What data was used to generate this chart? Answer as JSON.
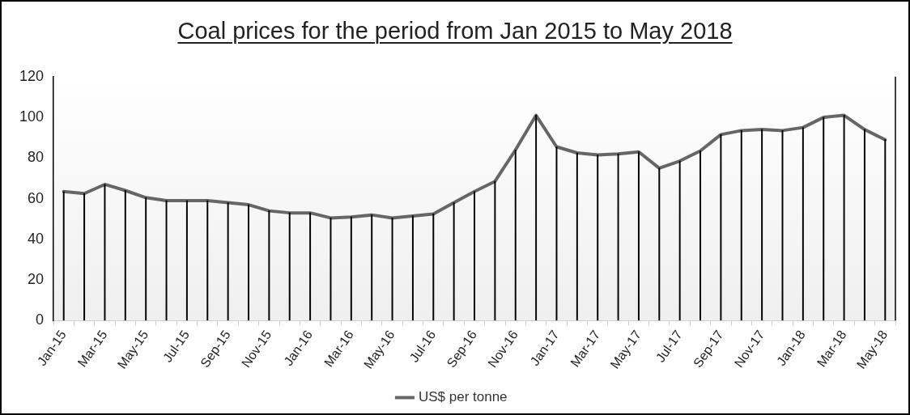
{
  "chart_data": {
    "type": "line",
    "title": "Coal prices for the period from Jan 2015 to May 2018",
    "categories": [
      "Jan-15",
      null,
      "Mar-15",
      null,
      "May-15",
      null,
      "Jul-15",
      null,
      "Sep-15",
      null,
      "Nov-15",
      null,
      "Jan-16",
      null,
      "Mar-16",
      null,
      "May-16",
      null,
      "Jul-16",
      null,
      "Sep-16",
      null,
      "Nov-16",
      null,
      "Jan-17",
      null,
      "Mar-17",
      null,
      "May-17",
      null,
      "Jul-17",
      null,
      "Sep-17",
      null,
      "Nov-17",
      null,
      "Jan-18",
      null,
      "Mar-18",
      null,
      "May-18"
    ],
    "series": [
      {
        "name": "US$ per tonne",
        "color": "#666666",
        "values": [
          63.5,
          62.5,
          67,
          64,
          60.5,
          59,
          59,
          59,
          58,
          57,
          54,
          53,
          53,
          50.5,
          51,
          52,
          50.5,
          51.5,
          52.5,
          58,
          63.5,
          68.5,
          84,
          101,
          85.5,
          82.5,
          81.5,
          82,
          83,
          75,
          78.5,
          83.5,
          91.5,
          93.5,
          94,
          93.5,
          95,
          100,
          101,
          94,
          89
        ]
      },
      {
        "type": "bar",
        "color": "#000000",
        "values": [
          63.5,
          62.5,
          67,
          64,
          60.5,
          59,
          59,
          59,
          58,
          57,
          54,
          53,
          53,
          50.5,
          51,
          52,
          50.5,
          51.5,
          52.5,
          58,
          63.5,
          68.5,
          84,
          101,
          85.5,
          82.5,
          81.5,
          82,
          83,
          75,
          78.5,
          83.5,
          91.5,
          93.5,
          94,
          93.5,
          95,
          100,
          101,
          94,
          89
        ]
      }
    ],
    "ylim": [
      0,
      120
    ],
    "yticks": [
      0,
      20,
      40,
      60,
      80,
      100,
      120
    ],
    "grid": false,
    "legend": "bottom",
    "marker": "none",
    "line_style": "solid"
  }
}
